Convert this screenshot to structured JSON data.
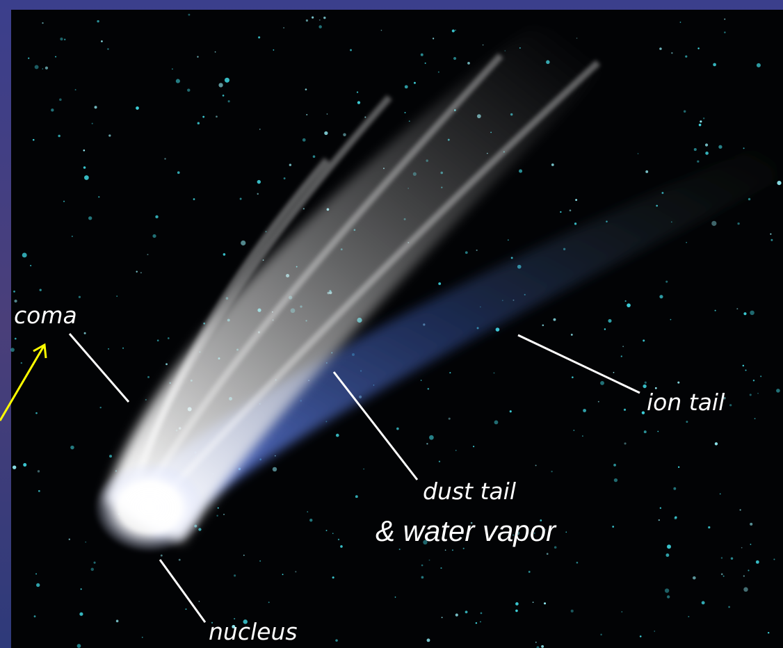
{
  "labels": {
    "coma": "coma",
    "ion_tail": "ion tail",
    "dust_tail": "dust tail",
    "water_vapor": "& water vapor",
    "nucleus": "nucleus"
  }
}
